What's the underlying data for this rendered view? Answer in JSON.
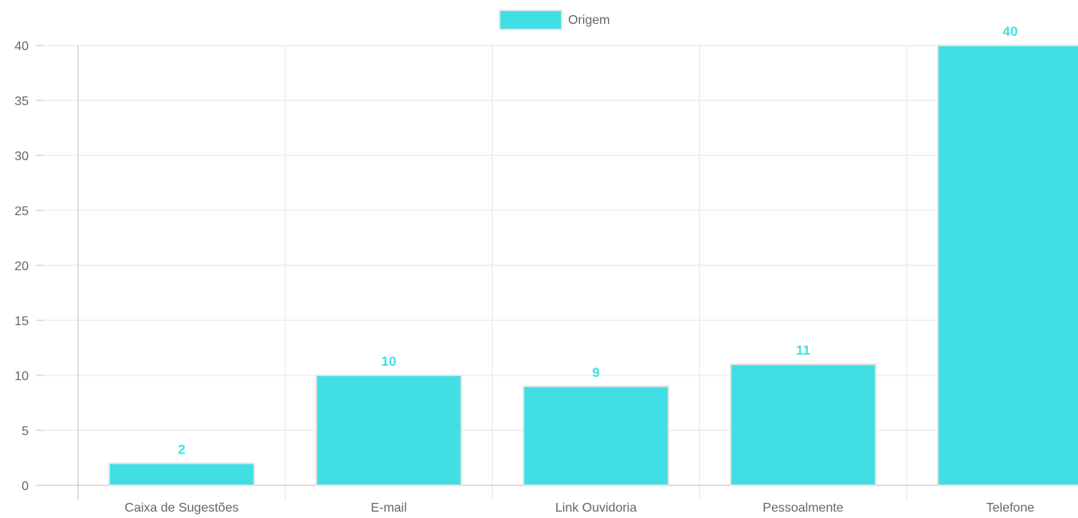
{
  "chart_data": {
    "type": "bar",
    "categories": [
      "Caixa de Sugestões",
      "E-mail",
      "Link Ouvidoria",
      "Pessoalmente",
      "Telefone"
    ],
    "series": [
      {
        "name": "Origem",
        "values": [
          2,
          10,
          9,
          11,
          40
        ]
      }
    ],
    "yticks": [
      "0",
      "5",
      "10",
      "15",
      "20",
      "25",
      "30",
      "35",
      "40"
    ],
    "ylim": [
      0,
      40
    ],
    "grid": true,
    "legend_position": "top-center",
    "data_labels": true,
    "colors": {
      "bar": "#41dfe4",
      "bar_border": "#e4e4e4",
      "label": "#41dfe4",
      "grid": "#e6e6e6",
      "axis": "#bdbdbd"
    }
  }
}
